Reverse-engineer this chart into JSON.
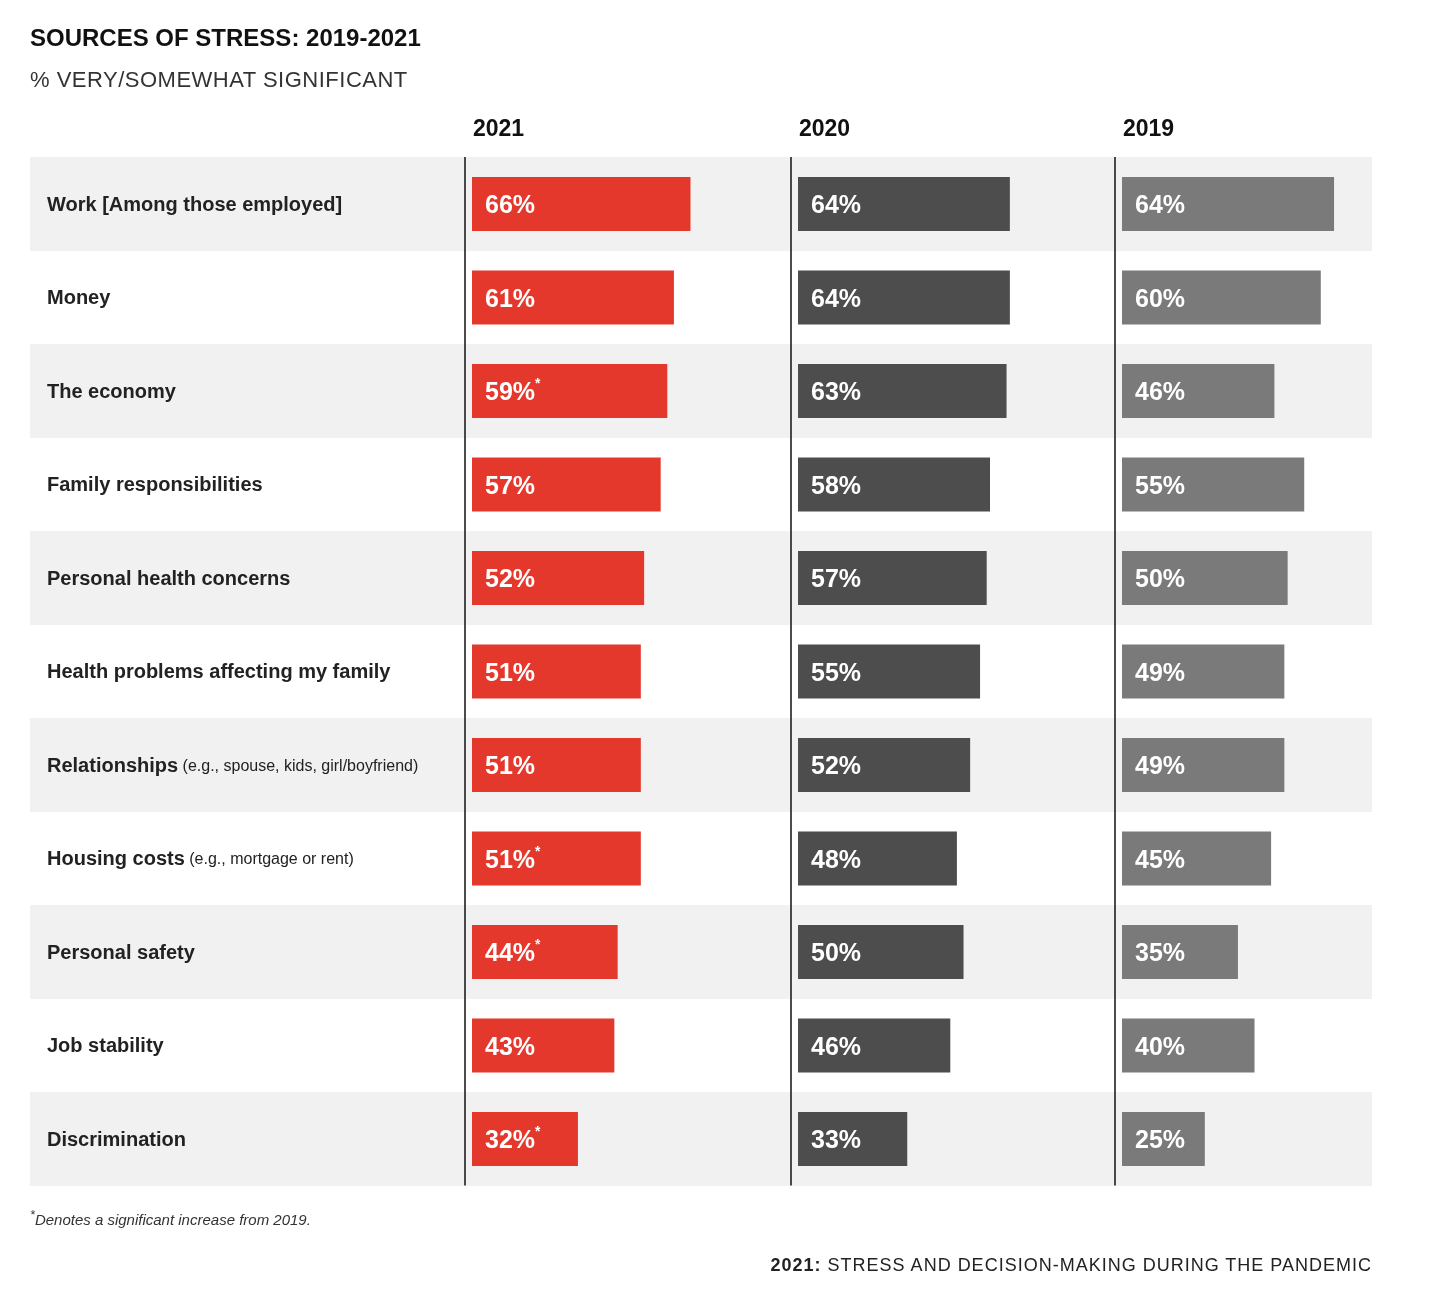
{
  "chart_data": [
    {
      "type": "bar",
      "orientation": "horizontal",
      "title": "2021",
      "categories": [
        "Work [Among those employed]",
        "Money",
        "The economy",
        "Family responsibilities",
        "Personal health concerns",
        "Health problems affecting my family",
        "Relationships (e.g., spouse, kids, girl/boyfriend)",
        "Housing costs (e.g., mortgage or rent)",
        "Personal safety",
        "Job stability",
        "Discrimination"
      ],
      "values": [
        66,
        61,
        59,
        57,
        52,
        51,
        51,
        51,
        44,
        43,
        32
      ],
      "value_labels": [
        "66%",
        "61%",
        "59%$^{*}$",
        "57%",
        "52%",
        "51%",
        "51%",
        "51%$^{*}$",
        "44%$^{*}$",
        "43%",
        "32%$^{*}$"
      ],
      "color": "#e5382d",
      "tick_labels": "y",
      "annotations": [
        "SOURCES OF STRESS: 2019-2021",
        "% VERY/SOMEWHAT SIGNIFICANT",
        "$^{*}$Denotes a significant increase from 2019.",
        "2021: STRESS AND DECISION-MAKING DURING THE PANDEMIC"
      ]
    },
    {
      "type": "bar",
      "orientation": "horizontal",
      "title": "2020",
      "categories": [
        null,
        null,
        null,
        null,
        null,
        null,
        null,
        null,
        null,
        null,
        null
      ],
      "values": [
        64,
        64,
        63,
        58,
        57,
        55,
        52,
        48,
        50,
        46,
        33
      ],
      "value_labels": [
        "64%",
        "64%",
        "63%",
        "58%",
        "57%",
        "55%",
        "52%",
        "48%",
        "50%",
        "46%",
        "33%"
      ],
      "color": "#4d4d4d",
      "tick_labels": false
    },
    {
      "type": "bar",
      "orientation": "horizontal",
      "title": "2019",
      "categories": [
        null,
        null,
        null,
        null,
        null,
        null,
        null,
        null,
        null,
        null,
        null
      ],
      "values": [
        64,
        60,
        46,
        55,
        50,
        49,
        49,
        45,
        35,
        40,
        25
      ],
      "value_labels": [
        "64%",
        "60%",
        "46%",
        "55%",
        "50%",
        "49%",
        "49%",
        "45%",
        "35%",
        "40%",
        "25%"
      ],
      "color": "#7a7a7a",
      "tick_labels": false
    }
  ]
}
